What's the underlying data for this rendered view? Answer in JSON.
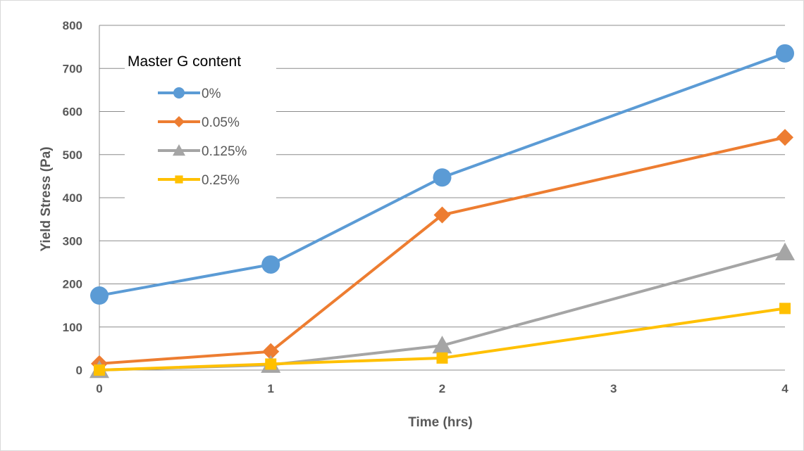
{
  "chart_data": {
    "type": "line",
    "xlabel": "Time (hrs)",
    "ylabel": "Yield Stress (Pa)",
    "xlim": [
      0,
      4
    ],
    "ylim": [
      0,
      800
    ],
    "x_ticks": [
      "0",
      "1",
      "2",
      "3",
      "4"
    ],
    "y_ticks": [
      "0",
      "100",
      "200",
      "300",
      "400",
      "500",
      "600",
      "700",
      "800"
    ],
    "grid": "horizontal",
    "legend": {
      "title": "Master G content",
      "position": "top-left"
    },
    "series": [
      {
        "name": "0%",
        "color": "#5b9bd5",
        "marker": "circle",
        "x": [
          0,
          1,
          2,
          4
        ],
        "y": [
          173,
          245,
          447,
          735
        ]
      },
      {
        "name": "0.05%",
        "color": "#ed7d31",
        "marker": "diamond",
        "x": [
          0,
          1,
          2,
          4
        ],
        "y": [
          15,
          43,
          360,
          540
        ]
      },
      {
        "name": "0.125%",
        "color": "#a5a5a5",
        "marker": "triangle",
        "x": [
          0,
          1,
          2,
          4
        ],
        "y": [
          0,
          12,
          57,
          273
        ]
      },
      {
        "name": "0.25%",
        "color": "#ffc000",
        "marker": "square",
        "x": [
          0,
          1,
          2,
          4
        ],
        "y": [
          0,
          14,
          28,
          143
        ]
      }
    ]
  }
}
